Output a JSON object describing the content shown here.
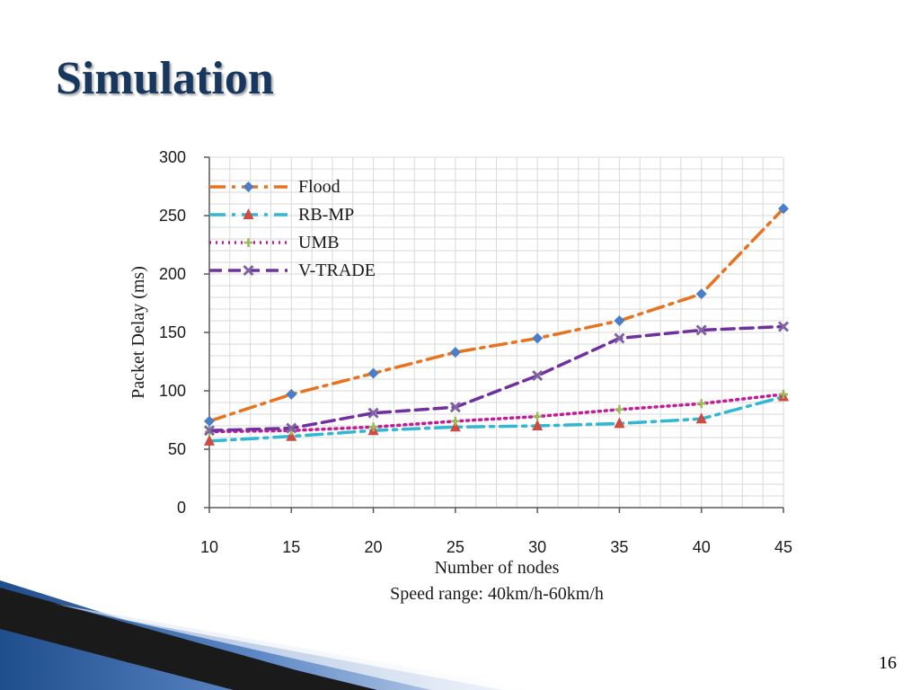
{
  "slide": {
    "title": "Simulation",
    "page_number": "16"
  },
  "colors": {
    "title": "#17375e",
    "flood": "#e8731f",
    "rbmp": "#31b7d3",
    "umb": "#c21c9a",
    "vtrade": "#7030a0",
    "flood_marker": "#4a7fc8",
    "rbmp_marker": "#d04a3f",
    "umb_marker": "#9bbb59",
    "vtrade_marker": "#8064a2",
    "grid": "#d9d9d9"
  },
  "chart_data": {
    "type": "line",
    "xlabel": "Number of nodes",
    "ylabel": "Packet Delay (ms)",
    "caption": "Speed range: 40km/h-60km/h",
    "x": [
      10,
      15,
      20,
      25,
      30,
      35,
      40,
      45
    ],
    "xticks": [
      "10",
      "15",
      "20",
      "25",
      "30",
      "35",
      "40",
      "45"
    ],
    "yticks": [
      "0",
      "50",
      "100",
      "150",
      "200",
      "250",
      "300"
    ],
    "xlim": [
      10,
      45
    ],
    "ylim": [
      0,
      300
    ],
    "grid": true,
    "legend_position": "top-left",
    "series": [
      {
        "name": "Flood",
        "color": "#e8731f",
        "marker": "diamond",
        "dash": "dash-dot",
        "values": [
          74,
          97,
          115,
          133,
          145,
          160,
          183,
          256
        ]
      },
      {
        "name": "RB-MP",
        "color": "#31b7d3",
        "marker": "triangle",
        "dash": "dash-dot",
        "values": [
          57,
          61,
          66,
          69,
          70,
          72,
          76,
          95
        ]
      },
      {
        "name": "UMB",
        "color": "#c21c9a",
        "marker": "plus",
        "dash": "dot",
        "values": [
          65,
          66,
          69,
          74,
          78,
          84,
          89,
          97
        ]
      },
      {
        "name": "V-TRADE",
        "color": "#7030a0",
        "marker": "x",
        "dash": "dash",
        "values": [
          66,
          68,
          81,
          86,
          113,
          145,
          152,
          155
        ]
      }
    ]
  }
}
